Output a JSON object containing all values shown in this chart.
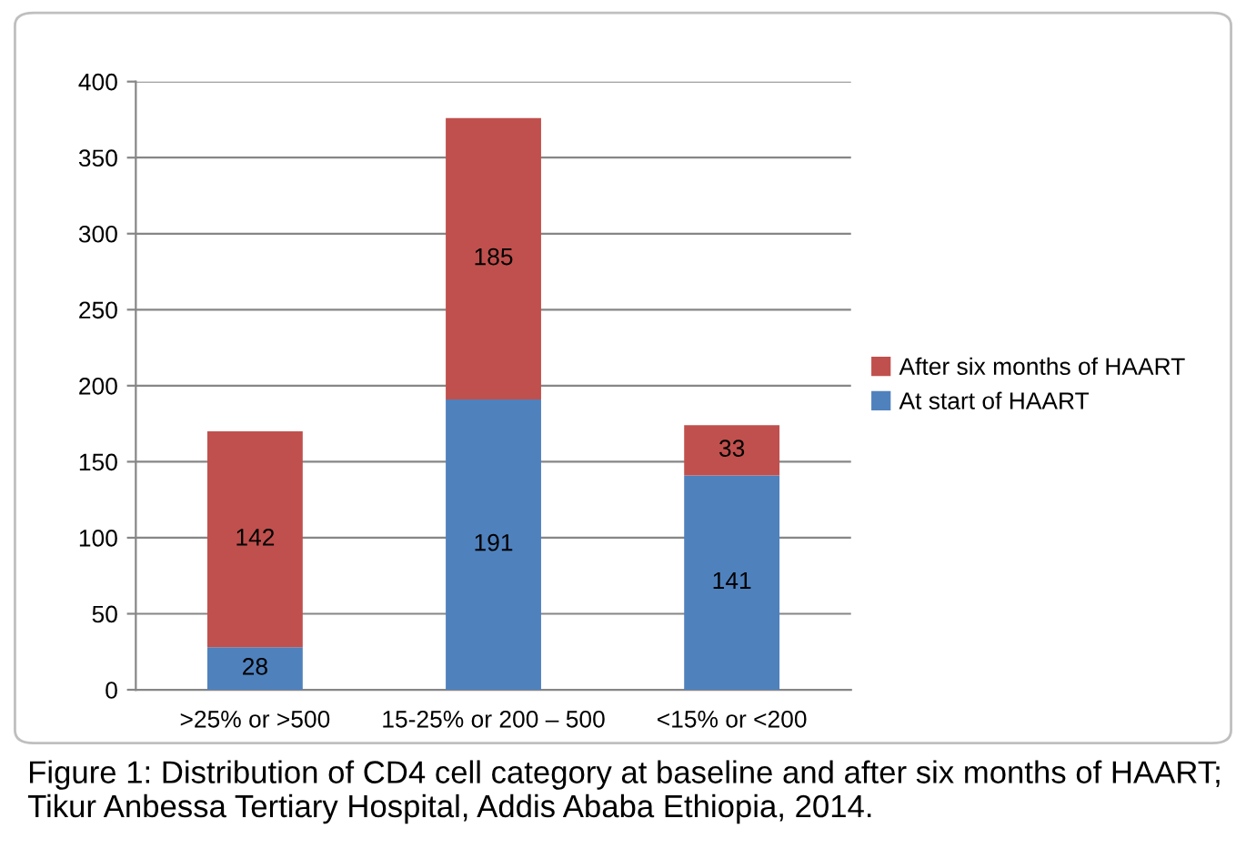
{
  "chart_data": {
    "type": "bar",
    "stacked": true,
    "categories": [
      ">25% or >500",
      "15-25% or 200 – 500",
      "<15% or <200"
    ],
    "series": [
      {
        "name": "At start of HAART",
        "color": "#4f81bd",
        "values": [
          28,
          191,
          141
        ]
      },
      {
        "name": "After six months of HAART",
        "color": "#c0504d",
        "values": [
          142,
          185,
          33
        ]
      }
    ],
    "ylim": [
      0,
      400
    ],
    "yticks": [
      0,
      50,
      100,
      150,
      200,
      250,
      300,
      350,
      400
    ],
    "grid": "y",
    "legend": "right",
    "data_labels": true,
    "annotations": [
      "Figure 1: Distribution of CD4 cell category at baseline and after six months of HAART; Tikur Anbessa Tertiary Hospital, Addis Ababa Ethiopia, 2014."
    ]
  }
}
